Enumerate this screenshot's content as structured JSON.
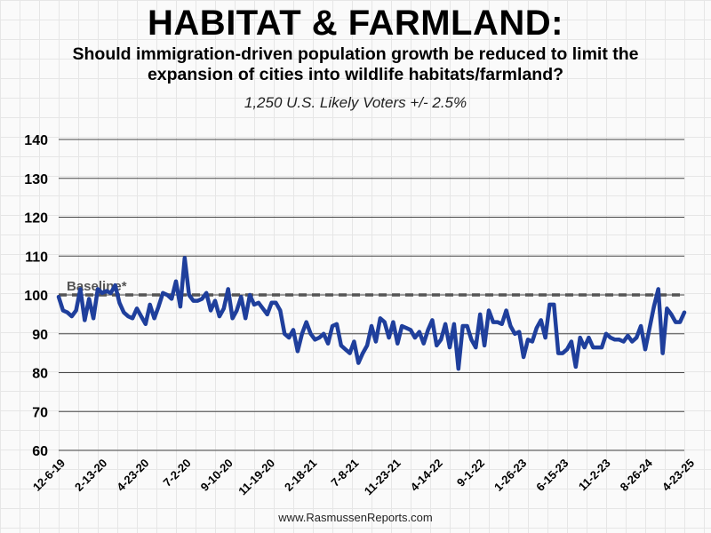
{
  "header": {
    "title": "HABITAT & FARMLAND:",
    "subtitle": "Should immigration-driven population growth be reduced to limit the expansion of cities into wildlife habitats/farmland?",
    "note": "1,250 U.S. Likely Voters +/- 2.5%"
  },
  "footer": {
    "source": "www.RasmussenReports.com"
  },
  "colors": {
    "line": "#1f3f9c",
    "baseline": "#555555"
  },
  "chart_data": {
    "type": "line",
    "title": "HABITAT & FARMLAND:",
    "subtitle": "Should immigration-driven population growth be reduced to limit the expansion of cities into wildlife habitats/farmland?",
    "xlabel": "",
    "ylabel": "",
    "ylim": [
      60,
      140
    ],
    "yticks": [
      60,
      70,
      80,
      90,
      100,
      110,
      120,
      130,
      140
    ],
    "grid": true,
    "legend": "none",
    "baseline": {
      "value": 100,
      "label": "Baseline*"
    },
    "x_tick_labels": [
      "12-6-19",
      "2-13-20",
      "4-23-20",
      "7-2-20",
      "9-10-20",
      "11-19-20",
      "2-18-21",
      "7-8-21",
      "11-23-21",
      "4-14-22",
      "9-1-22",
      "1-26-23",
      "6-15-23",
      "11-2-23",
      "8-26-24",
      "4-23-25"
    ],
    "series": [
      {
        "name": "",
        "values": [
          99.5,
          96,
          95.5,
          94.5,
          96,
          101.5,
          93.5,
          99,
          94,
          101.5,
          100.5,
          101,
          100.5,
          102.5,
          98,
          95.5,
          94.5,
          94,
          96.5,
          94.5,
          92.5,
          97.5,
          94,
          97,
          100.5,
          100,
          99,
          103.5,
          97,
          109.5,
          100,
          98.5,
          98.5,
          99,
          100.5,
          96,
          98.5,
          94.5,
          96.5,
          101.5,
          94,
          96,
          99.5,
          94,
          100,
          97.5,
          98,
          96.5,
          95,
          98,
          98,
          96,
          90,
          89,
          91,
          85.5,
          90,
          93,
          90,
          88.5,
          89,
          90,
          87.5,
          92,
          92.5,
          87,
          86,
          85,
          88,
          82.5,
          85,
          87,
          92,
          88,
          94,
          93,
          89,
          93,
          87.5,
          92,
          91.5,
          91,
          89,
          90.5,
          87.5,
          91,
          93.5,
          87,
          88.5,
          92.5,
          86.5,
          92.5,
          81,
          92,
          92,
          88.5,
          86.5,
          95,
          87,
          96,
          93,
          93,
          92.5,
          96,
          92,
          90,
          90.5,
          84,
          88.5,
          88,
          91.5,
          93.5,
          89,
          97.5,
          97.5,
          85,
          85,
          86,
          88,
          81.5,
          89,
          86.5,
          89,
          86.5,
          86.5,
          86.5,
          90,
          89,
          88.5,
          88.5,
          88,
          89.5,
          88,
          89,
          92,
          86,
          91.5,
          97,
          101.5,
          85,
          96.5,
          95,
          93,
          93,
          95.5
        ]
      }
    ]
  }
}
